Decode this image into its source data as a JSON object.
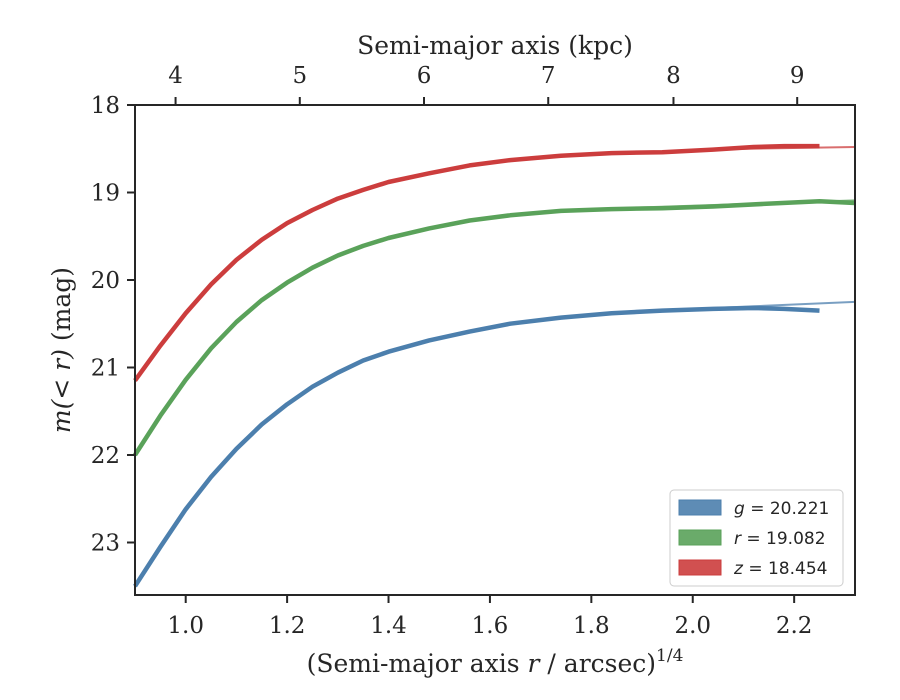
{
  "chart_data": {
    "type": "line",
    "xlabel": "(Semi-major axis r / arcsec)",
    "xlabel_prefix": "(Semi-major axis ",
    "xlabel_var": "r",
    "xlabel_suffix": " / arcsec)",
    "xlabel_exponent": "1/4",
    "ylabel": "m(< r) (mag)",
    "ylabel_math": "m(< r)",
    "ylabel_unit": " (mag)",
    "top_xlabel": "Semi-major axis (kpc)",
    "xlim": [
      0.9,
      2.32
    ],
    "ylim": [
      18,
      23.6
    ],
    "y_inverted": true,
    "x_ticks": [
      1.0,
      1.2,
      1.4,
      1.6,
      1.8,
      2.0,
      2.2
    ],
    "x_tick_labels": [
      "1.0",
      "1.2",
      "1.4",
      "1.6",
      "1.8",
      "2.0",
      "2.2"
    ],
    "y_ticks": [
      18,
      19,
      20,
      21,
      22,
      23
    ],
    "y_tick_labels": [
      "18",
      "19",
      "20",
      "21",
      "22",
      "23"
    ],
    "top_ticks_kpc": [
      4,
      5,
      6,
      7,
      8,
      9
    ],
    "top_tick_positions": [
      0.98,
      1.225,
      1.47,
      1.715,
      1.962,
      2.206
    ],
    "top_tick_labels": [
      "4",
      "5",
      "6",
      "7",
      "8",
      "9"
    ],
    "grid": false,
    "legend_position": "lower-right",
    "series": [
      {
        "band": "g",
        "value": "20.221",
        "color": "#4c7fad",
        "x": [
          0.9,
          0.95,
          1.0,
          1.05,
          1.1,
          1.15,
          1.2,
          1.25,
          1.3,
          1.35,
          1.4,
          1.48,
          1.56,
          1.64,
          1.74,
          1.84,
          1.94,
          2.04,
          2.12,
          2.18,
          2.25
        ],
        "y": [
          23.5,
          23.05,
          22.62,
          22.25,
          21.93,
          21.65,
          21.42,
          21.22,
          21.06,
          20.92,
          20.82,
          20.69,
          20.59,
          20.5,
          20.43,
          20.38,
          20.35,
          20.33,
          20.32,
          20.33,
          20.35
        ],
        "model_x": [
          2.0,
          2.32
        ],
        "model_y": [
          20.33,
          20.25
        ]
      },
      {
        "band": "r",
        "value": "19.082",
        "color": "#5aa25a",
        "x": [
          0.9,
          0.95,
          1.0,
          1.05,
          1.1,
          1.15,
          1.2,
          1.25,
          1.3,
          1.35,
          1.4,
          1.48,
          1.56,
          1.64,
          1.74,
          1.84,
          1.94,
          2.04,
          2.14,
          2.25,
          2.32
        ],
        "y": [
          22.0,
          21.55,
          21.14,
          20.78,
          20.48,
          20.23,
          20.03,
          19.86,
          19.72,
          19.61,
          19.52,
          19.41,
          19.32,
          19.26,
          19.21,
          19.19,
          19.18,
          19.16,
          19.13,
          19.1,
          19.12
        ],
        "model_x": [
          1.8,
          2.32
        ],
        "model_y": [
          19.19,
          19.09
        ]
      },
      {
        "band": "z",
        "value": "18.454",
        "color": "#cc3d3d",
        "x": [
          0.9,
          0.95,
          1.0,
          1.05,
          1.1,
          1.15,
          1.2,
          1.25,
          1.3,
          1.35,
          1.4,
          1.48,
          1.56,
          1.64,
          1.74,
          1.84,
          1.94,
          2.04,
          2.12,
          2.18,
          2.25
        ],
        "y": [
          21.15,
          20.75,
          20.38,
          20.05,
          19.77,
          19.54,
          19.35,
          19.2,
          19.07,
          18.97,
          18.88,
          18.78,
          18.69,
          18.63,
          18.58,
          18.55,
          18.54,
          18.51,
          18.48,
          18.47,
          18.47
        ],
        "model_x": [
          2.0,
          2.32
        ],
        "model_y": [
          18.51,
          18.48
        ]
      }
    ]
  }
}
